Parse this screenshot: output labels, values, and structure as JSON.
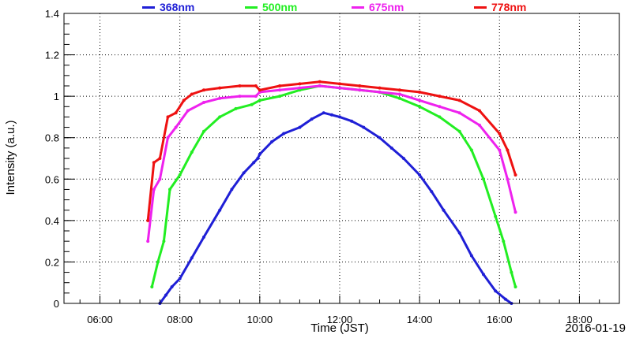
{
  "chart_data": {
    "type": "scatter",
    "title": "",
    "xlabel": "Time (JST)",
    "ylabel": "Intensity (a.u.)",
    "date_label": "2016-01-19",
    "xlim": [
      5.1,
      19.0
    ],
    "ylim": [
      0,
      1.4
    ],
    "x_ticks": [
      6,
      8,
      10,
      12,
      14,
      16,
      18
    ],
    "x_tick_labels": [
      "06:00",
      "08:00",
      "10:00",
      "12:00",
      "14:00",
      "16:00",
      "18:00"
    ],
    "y_ticks": [
      0,
      0.2,
      0.4,
      0.6,
      0.8,
      1.0,
      1.2,
      1.4
    ],
    "y_tick_labels": [
      "0",
      "0.2",
      "0.4",
      "0.6",
      "0.8",
      "1",
      "1.2",
      "1.4"
    ],
    "grid": true,
    "legend_position": "top",
    "series": [
      {
        "name": "368nm",
        "color": "#1f1fd6",
        "x": [
          7.5,
          7.65,
          7.8,
          8.0,
          8.3,
          8.6,
          9.0,
          9.3,
          9.6,
          9.85,
          9.95,
          10.0,
          10.3,
          10.6,
          11.0,
          11.3,
          11.6,
          11.8,
          12.0,
          12.3,
          12.6,
          13.0,
          13.3,
          13.6,
          14.0,
          14.3,
          14.6,
          15.0,
          15.3,
          15.6,
          15.9,
          16.15,
          16.3
        ],
        "y": [
          0.0,
          0.04,
          0.08,
          0.12,
          0.22,
          0.32,
          0.45,
          0.55,
          0.63,
          0.68,
          0.7,
          0.72,
          0.78,
          0.82,
          0.85,
          0.89,
          0.92,
          0.91,
          0.9,
          0.88,
          0.85,
          0.8,
          0.75,
          0.7,
          0.62,
          0.54,
          0.45,
          0.34,
          0.23,
          0.14,
          0.06,
          0.02,
          0.0
        ]
      },
      {
        "name": "500nm",
        "color": "#22ee22",
        "x": [
          7.3,
          7.45,
          7.6,
          7.75,
          8.0,
          8.3,
          8.6,
          9.0,
          9.4,
          9.8,
          10.0,
          10.5,
          11.0,
          11.5,
          12.0,
          12.5,
          13.0,
          13.5,
          14.0,
          14.5,
          15.0,
          15.3,
          15.6,
          15.9,
          16.1,
          16.3,
          16.4
        ],
        "y": [
          0.08,
          0.2,
          0.3,
          0.55,
          0.62,
          0.73,
          0.83,
          0.9,
          0.94,
          0.96,
          0.98,
          1.0,
          1.03,
          1.05,
          1.04,
          1.03,
          1.02,
          0.99,
          0.95,
          0.9,
          0.83,
          0.74,
          0.6,
          0.42,
          0.3,
          0.15,
          0.08
        ]
      },
      {
        "name": "675nm",
        "color": "#ee22ee",
        "x": [
          7.2,
          7.35,
          7.5,
          7.7,
          7.9,
          8.2,
          8.6,
          9.0,
          9.5,
          9.9,
          10.0,
          10.5,
          11.0,
          11.5,
          12.0,
          12.5,
          13.0,
          13.5,
          14.0,
          14.5,
          15.0,
          15.5,
          16.0,
          16.2,
          16.4
        ],
        "y": [
          0.3,
          0.55,
          0.6,
          0.8,
          0.85,
          0.93,
          0.97,
          0.99,
          1.0,
          1.0,
          1.02,
          1.03,
          1.04,
          1.05,
          1.04,
          1.03,
          1.02,
          1.01,
          0.98,
          0.95,
          0.92,
          0.86,
          0.74,
          0.6,
          0.44
        ]
      },
      {
        "name": "778nm",
        "color": "#ee1111",
        "x": [
          7.2,
          7.35,
          7.5,
          7.7,
          7.9,
          8.1,
          8.3,
          8.6,
          9.0,
          9.5,
          9.9,
          10.0,
          10.5,
          11.0,
          11.5,
          12.0,
          12.5,
          13.0,
          13.5,
          14.0,
          14.5,
          15.0,
          15.5,
          16.0,
          16.2,
          16.4
        ],
        "y": [
          0.4,
          0.68,
          0.7,
          0.9,
          0.92,
          0.98,
          1.01,
          1.03,
          1.04,
          1.05,
          1.05,
          1.03,
          1.05,
          1.06,
          1.07,
          1.06,
          1.05,
          1.04,
          1.03,
          1.02,
          1.0,
          0.98,
          0.93,
          0.82,
          0.74,
          0.62
        ]
      }
    ]
  }
}
